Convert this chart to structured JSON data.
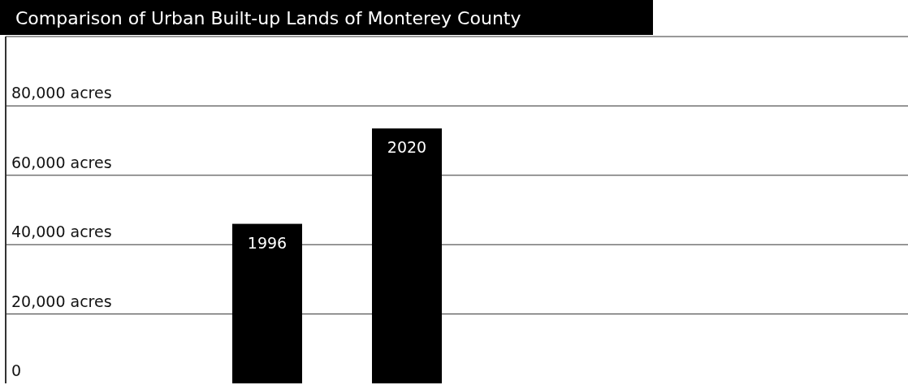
{
  "chart_data": {
    "type": "bar",
    "title": "Comparison of Urban Built-up Lands of Monterey County",
    "categories": [
      "1996",
      "2020"
    ],
    "values": [
      46000,
      73500
    ],
    "color": "#000000",
    "ylim": [
      0,
      100000
    ],
    "yticks": [
      {
        "value": 0,
        "label": "0"
      },
      {
        "value": 20000,
        "label": "20,000 acres"
      },
      {
        "value": 40000,
        "label": "40,000 acres"
      },
      {
        "value": 60000,
        "label": "60,000 acres"
      },
      {
        "value": 80000,
        "label": "80,000 acres"
      }
    ],
    "grid": "y"
  }
}
